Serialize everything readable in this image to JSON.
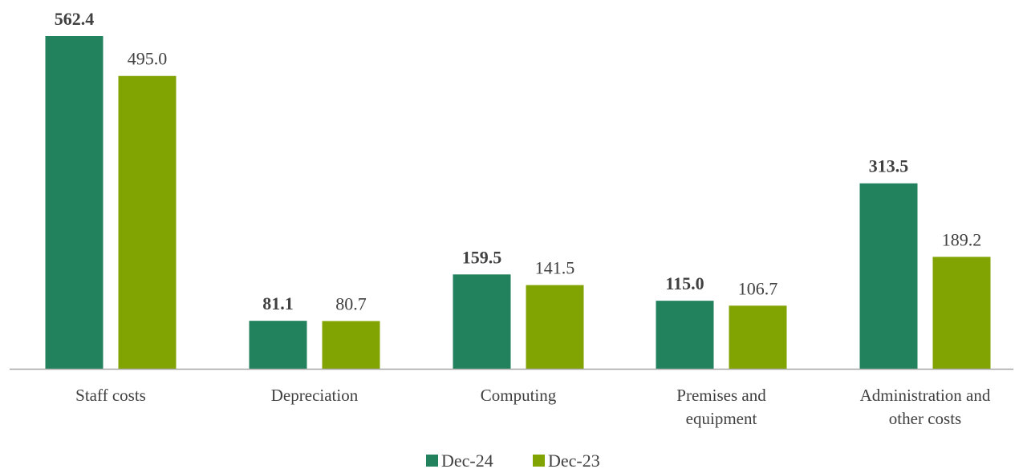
{
  "chart_data": {
    "type": "bar",
    "categories": [
      [
        "Staff costs"
      ],
      [
        "Depreciation"
      ],
      [
        "Computing"
      ],
      [
        "Premises and",
        "equipment"
      ],
      [
        "Administration and",
        "other costs"
      ]
    ],
    "series": [
      {
        "name": "Dec-24",
        "color": "#23825e",
        "label_bold": true,
        "values": [
          562.4,
          81.1,
          159.5,
          115.0,
          313.5
        ],
        "labels": [
          "562.4",
          "81.1",
          "159.5",
          "115.0",
          "313.5"
        ]
      },
      {
        "name": "Dec-23",
        "color": "#82a403",
        "label_bold": false,
        "values": [
          495.0,
          80.7,
          141.5,
          106.7,
          189.2
        ],
        "labels": [
          "495.0",
          "80.7",
          "141.5",
          "106.7",
          "189.2"
        ]
      }
    ],
    "ylim": [
      0,
      562.4
    ],
    "grid": false,
    "legend_position": "bottom",
    "axis_color": "#a6a6a6"
  }
}
